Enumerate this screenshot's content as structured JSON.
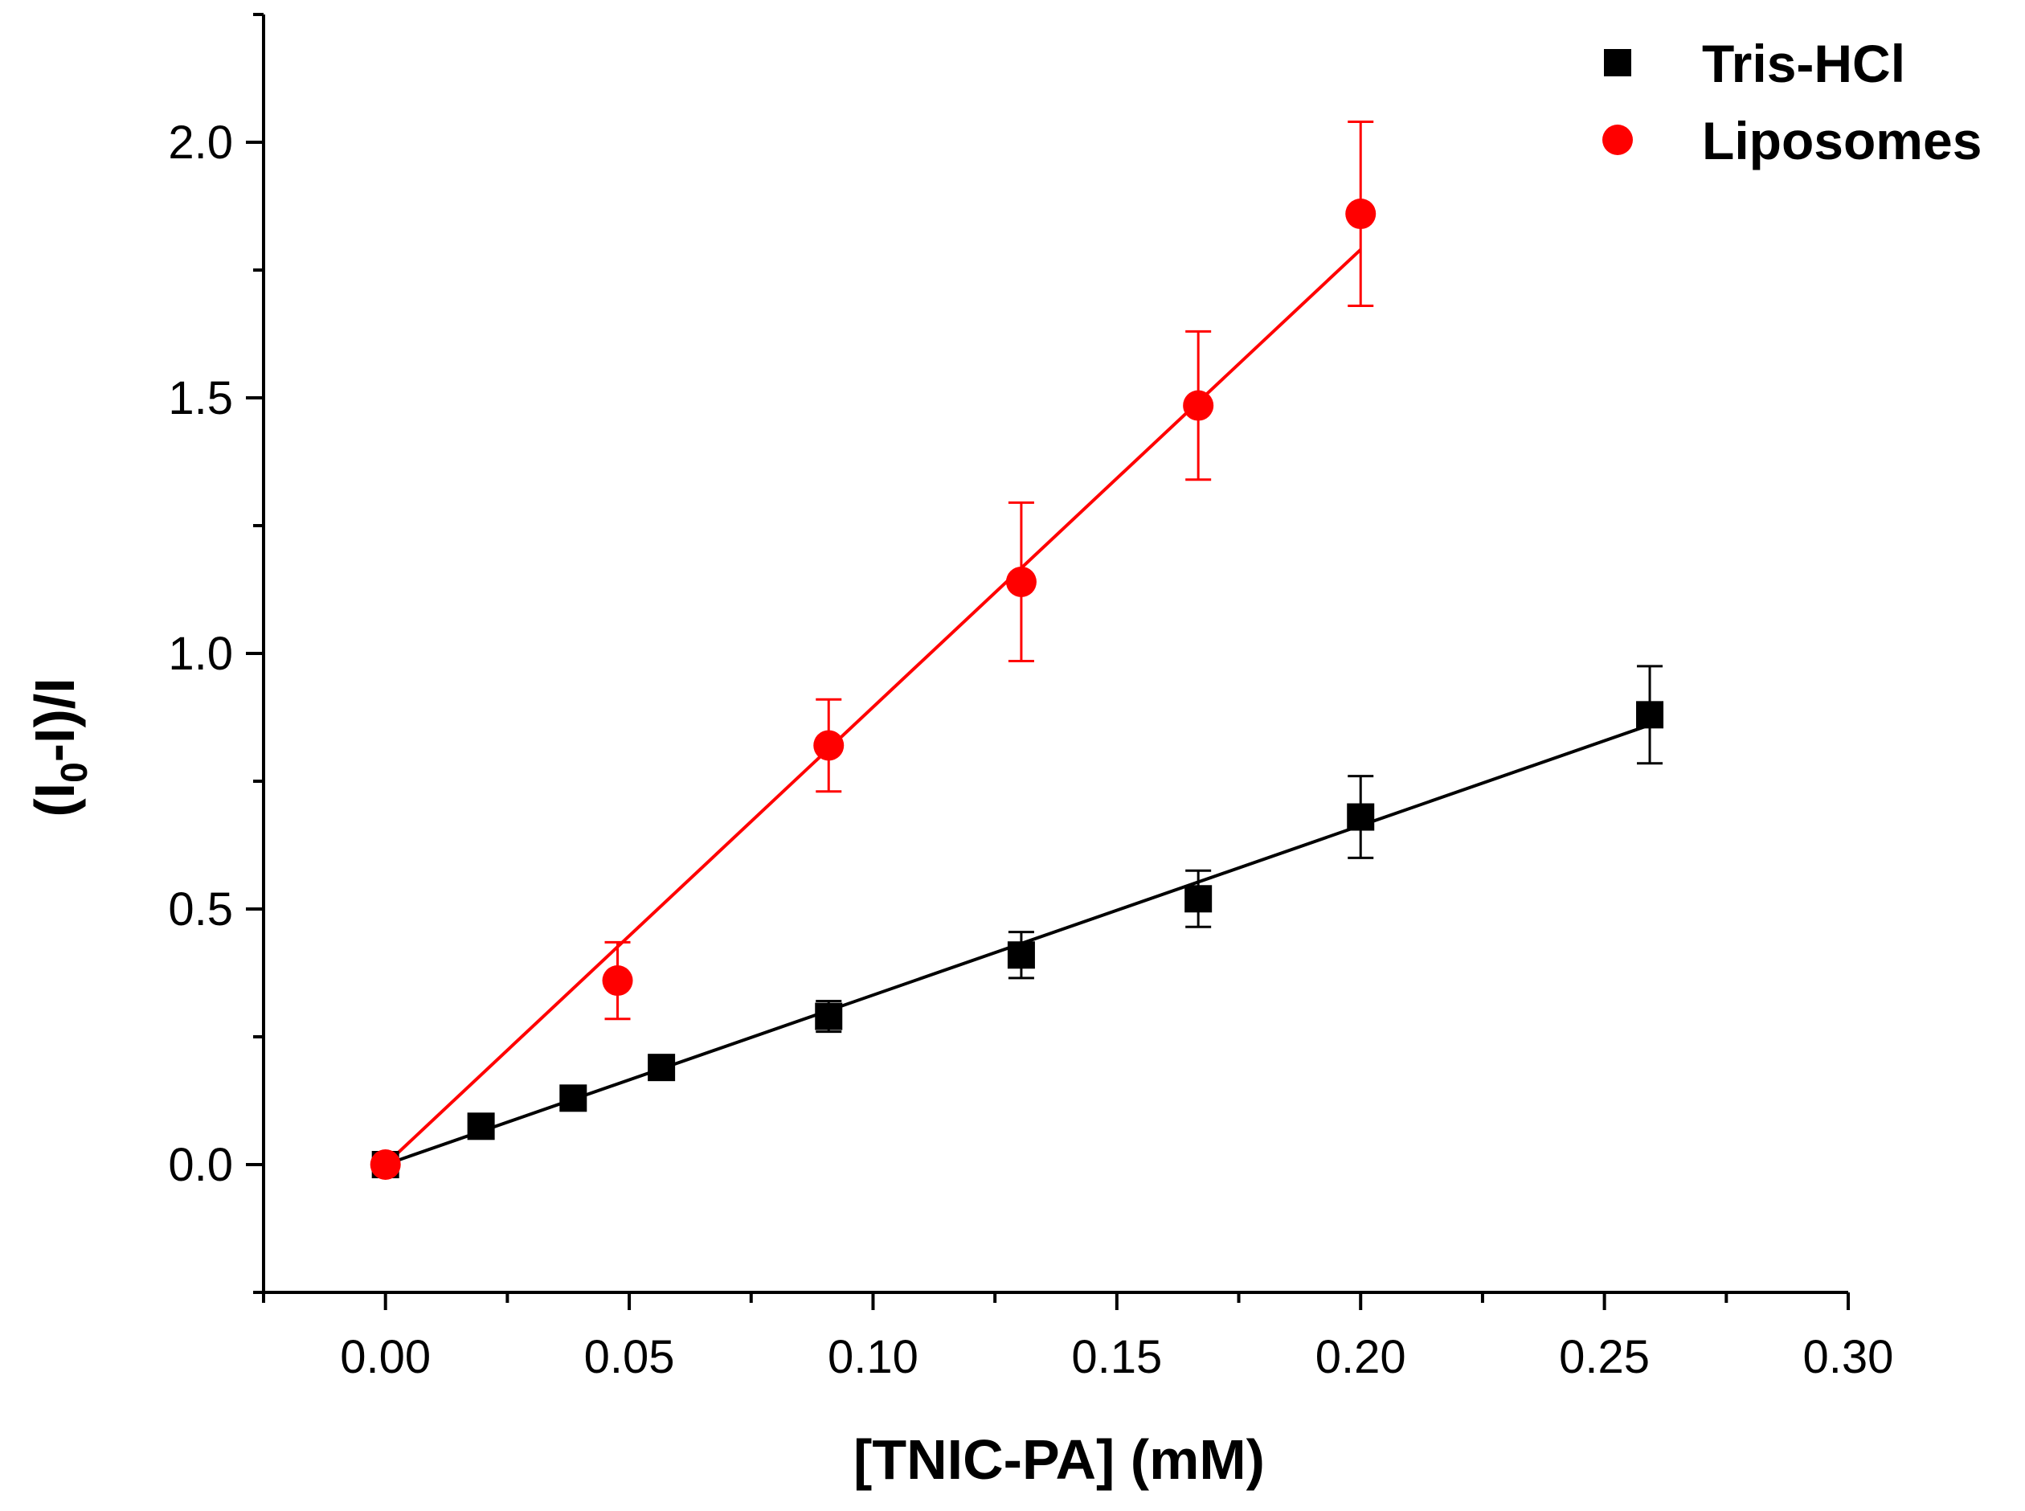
{
  "chart_data": {
    "type": "scatter",
    "xlabel": "[TNIC-PA] (mM)",
    "ylabel": "(I0-I)/I",
    "ylabel_parts": {
      "open": "(I",
      "sub": "0",
      "rest": "-I)/I"
    },
    "xlim": [
      -0.025,
      0.3
    ],
    "ylim": [
      -0.25,
      2.25
    ],
    "x_ticks": [
      0.0,
      0.05,
      0.1,
      0.15,
      0.2,
      0.25,
      0.3
    ],
    "x_tick_labels": [
      "0.00",
      "0.05",
      "0.10",
      "0.15",
      "0.20",
      "0.25",
      "0.30"
    ],
    "y_ticks": [
      0.0,
      0.5,
      1.0,
      1.5,
      2.0
    ],
    "y_tick_labels": [
      "0.0",
      "0.5",
      "1.0",
      "1.5",
      "2.0"
    ],
    "legend_position": "top-right",
    "grid": false,
    "series": [
      {
        "name": "Tris-HCl",
        "marker": "square",
        "color": "#000000",
        "x": [
          0.0,
          0.0196,
          0.0385,
          0.0566,
          0.0909,
          0.1304,
          0.1667,
          0.2,
          0.2593
        ],
        "y": [
          0.0,
          0.075,
          0.13,
          0.19,
          0.29,
          0.41,
          0.52,
          0.68,
          0.88
        ],
        "err": [
          0,
          0,
          0,
          0,
          0.03,
          0.045,
          0.055,
          0.08,
          0.095
        ],
        "fit": {
          "x": [
            0.0,
            0.2593
          ],
          "y": [
            0.0,
            0.86
          ]
        }
      },
      {
        "name": "Liposomes",
        "marker": "circle",
        "color": "#ff0000",
        "x": [
          0.0,
          0.0476,
          0.0909,
          0.1304,
          0.1667,
          0.2
        ],
        "y": [
          0.0,
          0.36,
          0.82,
          1.14,
          1.485,
          1.86
        ],
        "err": [
          0,
          0.075,
          0.09,
          0.155,
          0.145,
          0.18
        ],
        "fit": {
          "x": [
            0.0,
            0.2
          ],
          "y": [
            0.0,
            1.79
          ]
        }
      }
    ]
  }
}
